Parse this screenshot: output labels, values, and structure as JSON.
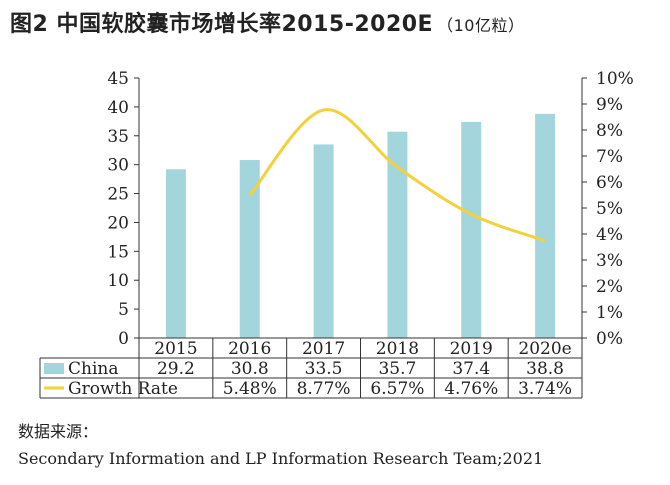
{
  "title": "图2 中国软胶囊市场增长率2015-2020E",
  "title_unit": "（10亿粒）",
  "source_label": "数据来源：",
  "source_text": "Secondary Information and LP Information Research Team;2021",
  "colors": {
    "bar": "#a3d5dc",
    "line": "#f2d13a",
    "axis": "#333333"
  },
  "chart_data": {
    "type": "bar",
    "categories": [
      "2015",
      "2016",
      "2017",
      "2018",
      "2019",
      "2020e"
    ],
    "series": [
      {
        "name": "China",
        "type": "bar",
        "axis": "left",
        "values": [
          29.2,
          30.8,
          33.5,
          35.7,
          37.4,
          38.8
        ],
        "labels": [
          "29.2",
          "30.8",
          "33.5",
          "35.7",
          "37.4",
          "38.8"
        ]
      },
      {
        "name": "Growth Rate",
        "type": "line",
        "axis": "right",
        "values": [
          null,
          5.48,
          8.77,
          6.57,
          4.76,
          3.74
        ],
        "labels": [
          "",
          "5.48%",
          "8.77%",
          "6.57%",
          "4.76%",
          "3.74%"
        ]
      }
    ],
    "y_left": {
      "ylim": [
        0,
        45
      ],
      "ticks": [
        "0",
        "5",
        "10",
        "15",
        "20",
        "25",
        "30",
        "35",
        "40",
        "45"
      ]
    },
    "y_right": {
      "ylim": [
        0,
        10
      ],
      "ticks": [
        "0%",
        "1%",
        "2%",
        "3%",
        "4%",
        "5%",
        "6%",
        "7%",
        "8%",
        "9%",
        "10%"
      ]
    },
    "grid": false,
    "legend": "data-table"
  }
}
